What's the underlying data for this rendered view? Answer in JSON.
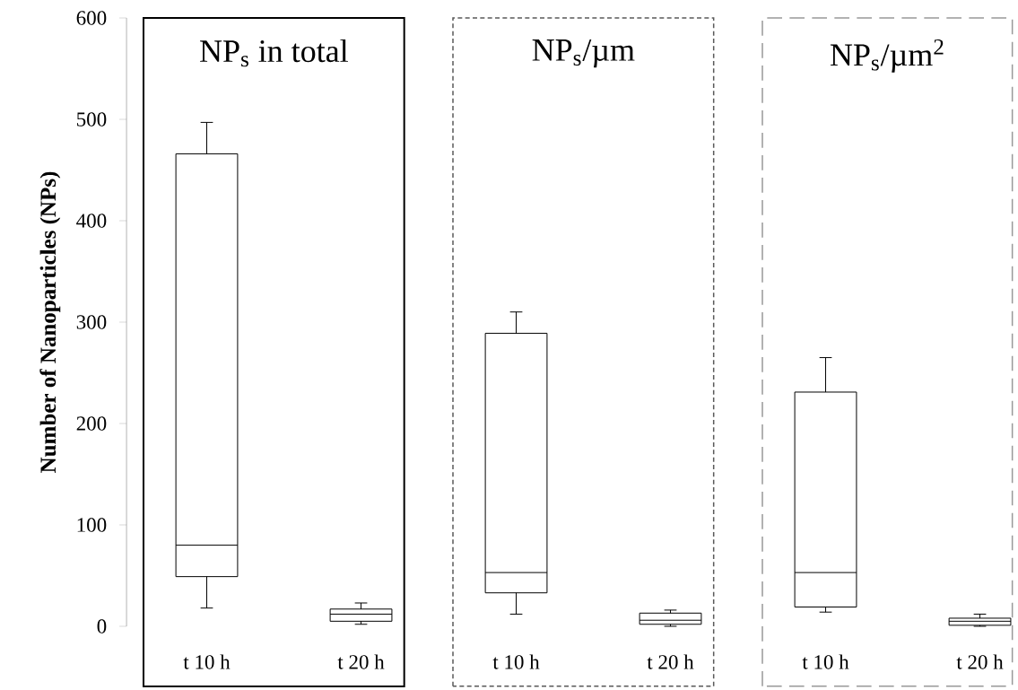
{
  "chart_data": [
    {
      "type": "box",
      "title": "NP$_{s}$ in total",
      "ylabel": "Number of Nanoparticles (NPs)",
      "categories": [
        "t 10 h",
        "t 20 h"
      ],
      "ylim": [
        0,
        600
      ],
      "yticks": [
        0,
        100,
        200,
        300,
        400,
        500,
        600
      ],
      "grid": false,
      "boxes": [
        {
          "low": 18,
          "q1": 49,
          "median": 80,
          "q3": 466,
          "high": 497
        },
        {
          "low": 2,
          "q1": 5,
          "median": 12,
          "q3": 17,
          "high": 23
        }
      ]
    },
    {
      "type": "box",
      "title": "NP$_{s}$/µm",
      "categories": [
        "t 10 h",
        "t 20 h"
      ],
      "ylim": [
        -59,
        600
      ],
      "yticks": [
        0,
        100,
        200,
        300,
        400,
        500,
        600
      ],
      "tick_labels": "x",
      "grid": false,
      "boxes": [
        {
          "low": 12,
          "q1": 33,
          "median": 53,
          "q3": 289,
          "high": 310
        },
        {
          "low": 0,
          "q1": 2,
          "median": 6,
          "q3": 13,
          "high": 16
        }
      ]
    },
    {
      "type": "box",
      "title": "NP$_{s}$/µm$^{2}$",
      "categories": [
        "t 10 h",
        "t 20 h"
      ],
      "ylim": [
        -59,
        600
      ],
      "yticks": [
        0,
        100,
        200,
        300,
        400,
        500,
        600
      ],
      "tick_labels": "x",
      "grid": false,
      "boxes": [
        {
          "low": 14,
          "q1": 19,
          "median": 53,
          "q3": 231,
          "high": 265
        },
        {
          "low": 0,
          "q1": 1,
          "median": 5,
          "q3": 8,
          "high": 12
        }
      ]
    }
  ]
}
